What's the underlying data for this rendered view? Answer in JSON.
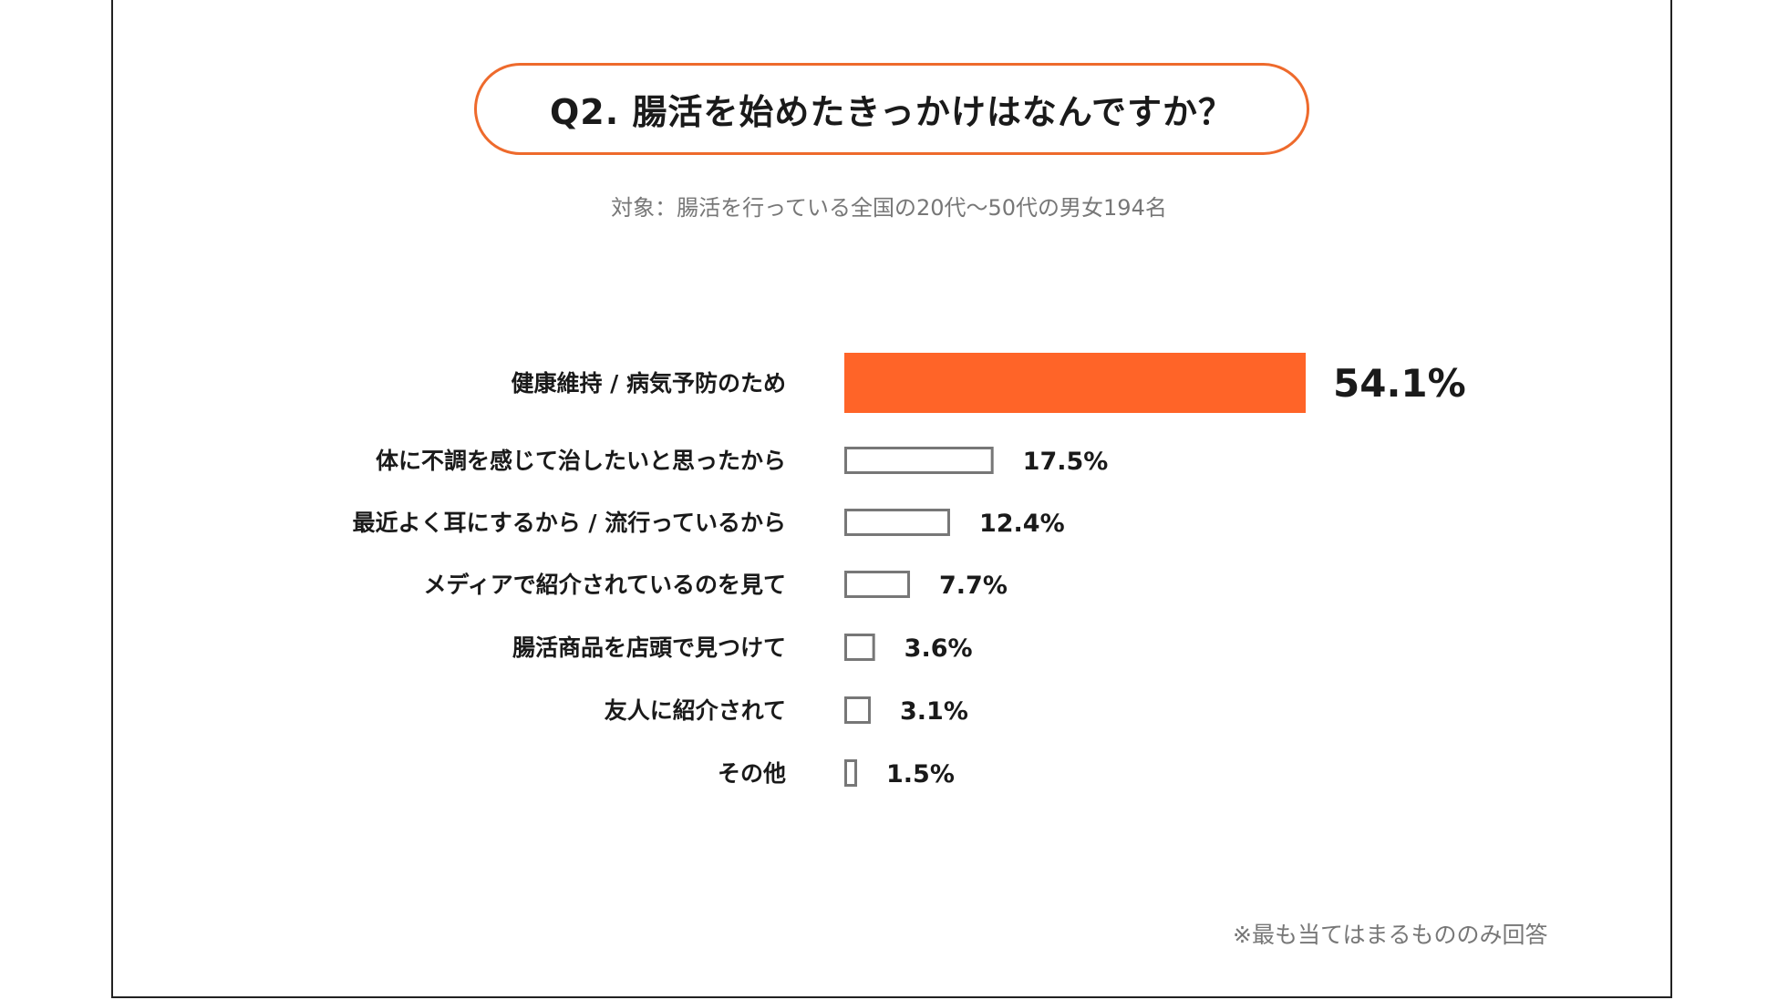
{
  "header": {
    "title": "Q2. 腸活を始めたきっかけはなんですか？",
    "subtitle": "対象：腸活を行っている全国の20代〜50代の男女194名"
  },
  "footnote": "※最も当てはまるもののみ回答",
  "colors": {
    "accent": "#ff6428",
    "outline": "#777777",
    "title_border": "#ee6a2c"
  },
  "chart_data": {
    "type": "bar",
    "orientation": "horizontal",
    "title": "Q2. 腸活を始めたきっかけはなんですか？",
    "categories": [
      "健康維持 / 病気予防のため",
      "体に不調を感じて治したいと思ったから",
      "最近よく耳にするから / 流行っているから",
      "メディアで紹介されているのを見て",
      "腸活商品を店頭で見つけて",
      "友人に紹介されて",
      "その他"
    ],
    "values": [
      54.1,
      17.5,
      12.4,
      7.7,
      3.6,
      3.1,
      1.5
    ],
    "value_labels": [
      "54.1%",
      "17.5%",
      "12.4%",
      "7.7%",
      "3.6%",
      "3.1%",
      "1.5%"
    ],
    "highlight_index": 0,
    "unit": "%",
    "grid": false
  }
}
